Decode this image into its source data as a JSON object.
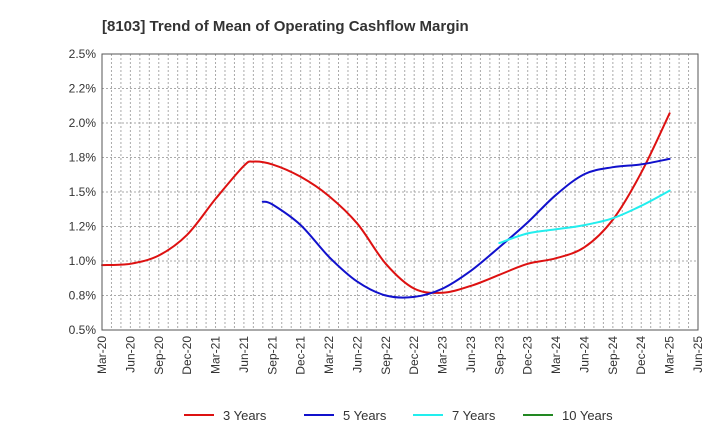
{
  "chart_data": {
    "type": "line",
    "title": "[8103]  Trend of Mean of Operating Cashflow Margin",
    "xlabel": "",
    "ylabel": "",
    "ylim": [
      0.5,
      2.5
    ],
    "y_ticks": [
      "0.5%",
      "0.8%",
      "1.0%",
      "1.2%",
      "1.5%",
      "1.8%",
      "2.0%",
      "2.2%",
      "2.5%"
    ],
    "x_ticks": [
      "Mar-20",
      "Jun-20",
      "Sep-20",
      "Dec-20",
      "Mar-21",
      "Jun-21",
      "Sep-21",
      "Dec-21",
      "Mar-22",
      "Jun-22",
      "Sep-22",
      "Dec-22",
      "Mar-23",
      "Jun-23",
      "Sep-23",
      "Dec-23",
      "Mar-24",
      "Jun-24",
      "Sep-24",
      "Dec-24",
      "Mar-25",
      "Jun-25"
    ],
    "grid": true,
    "legend_position": "bottom",
    "series": [
      {
        "name": "3 Years",
        "color": "#dd1111",
        "points": [
          [
            "Mar-20",
            0.97
          ],
          [
            "Jun-20",
            0.98
          ],
          [
            "Sep-20",
            1.04
          ],
          [
            "Dec-20",
            1.19
          ],
          [
            "Mar-21",
            1.45
          ],
          [
            "Jun-21",
            1.69
          ],
          [
            "Jul-21",
            1.72
          ],
          [
            "Sep-21",
            1.7
          ],
          [
            "Dec-21",
            1.61
          ],
          [
            "Mar-22",
            1.47
          ],
          [
            "Jun-22",
            1.27
          ],
          [
            "Sep-22",
            0.98
          ],
          [
            "Dec-22",
            0.8
          ],
          [
            "Mar-23",
            0.77
          ],
          [
            "Jun-23",
            0.82
          ],
          [
            "Sep-23",
            0.9
          ],
          [
            "Dec-23",
            0.98
          ],
          [
            "Mar-24",
            1.02
          ],
          [
            "Jun-24",
            1.1
          ],
          [
            "Sep-24",
            1.3
          ],
          [
            "Dec-24",
            1.64
          ],
          [
            "Mar-25",
            2.07
          ]
        ]
      },
      {
        "name": "5 Years",
        "color": "#1111cc",
        "points": [
          [
            "Aug-21",
            1.43
          ],
          [
            "Sep-21",
            1.41
          ],
          [
            "Dec-21",
            1.26
          ],
          [
            "Mar-22",
            1.03
          ],
          [
            "Jun-22",
            0.85
          ],
          [
            "Sep-22",
            0.75
          ],
          [
            "Dec-22",
            0.74
          ],
          [
            "Mar-23",
            0.8
          ],
          [
            "Jun-23",
            0.93
          ],
          [
            "Sep-23",
            1.1
          ],
          [
            "Dec-23",
            1.28
          ],
          [
            "Mar-24",
            1.48
          ],
          [
            "Jun-24",
            1.63
          ],
          [
            "Sep-24",
            1.68
          ],
          [
            "Dec-24",
            1.7
          ],
          [
            "Mar-25",
            1.74
          ]
        ]
      },
      {
        "name": "7 Years",
        "color": "#22eeee",
        "points": [
          [
            "Sep-23",
            1.13
          ],
          [
            "Dec-23",
            1.2
          ],
          [
            "Mar-24",
            1.23
          ],
          [
            "Jun-24",
            1.26
          ],
          [
            "Sep-24",
            1.31
          ],
          [
            "Dec-24",
            1.4
          ],
          [
            "Mar-25",
            1.51
          ]
        ]
      },
      {
        "name": "10 Years",
        "color": "#228822",
        "points": []
      }
    ]
  }
}
